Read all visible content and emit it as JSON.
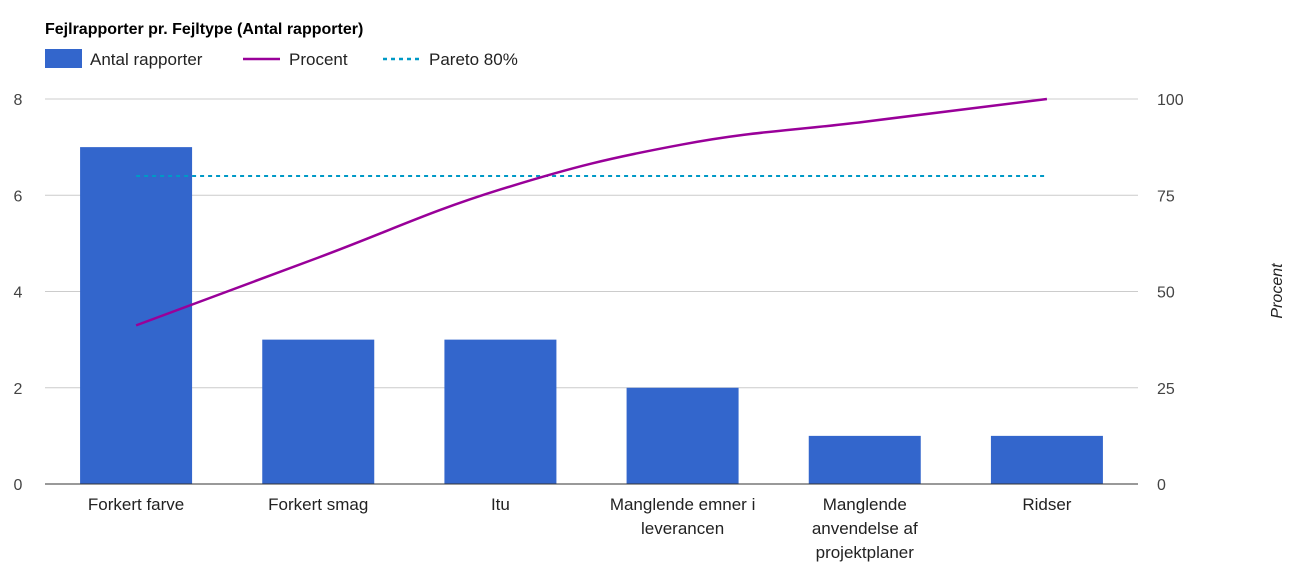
{
  "chart_data": {
    "type": "bar",
    "title": "Fejlrapporter pr. Fejltype (Antal rapporter)",
    "categories": [
      [
        "Forkert farve"
      ],
      [
        "Forkert smag"
      ],
      [
        "Itu"
      ],
      [
        "Manglende emner i",
        "leverancen"
      ],
      [
        "Manglende",
        "anvendelse af",
        "projektplaner"
      ],
      [
        "Ridser"
      ]
    ],
    "series": [
      {
        "name": "Antal rapporter",
        "kind": "bar",
        "axis": "left",
        "color": "#3366cc",
        "values": [
          7,
          3,
          3,
          2,
          1,
          1
        ]
      },
      {
        "name": "Procent",
        "kind": "line",
        "axis": "right",
        "color": "#990099",
        "values": [
          41.2,
          58.8,
          76.5,
          88.2,
          94.1,
          100
        ]
      },
      {
        "name": "Pareto 80%",
        "kind": "dashed-line",
        "axis": "right",
        "color": "#0099c6",
        "values": [
          80,
          80,
          80,
          80,
          80,
          80
        ]
      }
    ],
    "y_left": {
      "min": 0,
      "max": 8,
      "ticks": [
        "0",
        "2",
        "4",
        "6",
        "8"
      ]
    },
    "y_right": {
      "min": 0,
      "max": 100,
      "ticks": [
        "0",
        "25",
        "50",
        "75",
        "100"
      ],
      "label": "Procent"
    },
    "grid": true,
    "legend": "top-left"
  }
}
